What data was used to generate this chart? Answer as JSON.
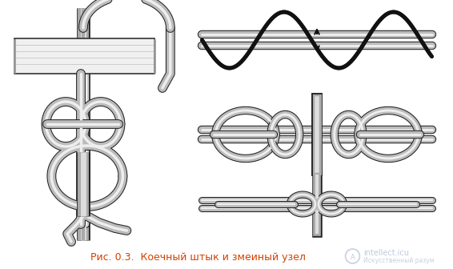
{
  "caption": "Рис. 0.3.  Коечный штык и змеиный узел",
  "caption_color": "#d44000",
  "watermark_text": "intellect.icu",
  "watermark_sub": "Искусственный разум",
  "bg_color": "#ffffff",
  "fig_width": 5.66,
  "fig_height": 3.36,
  "dpi": 100
}
